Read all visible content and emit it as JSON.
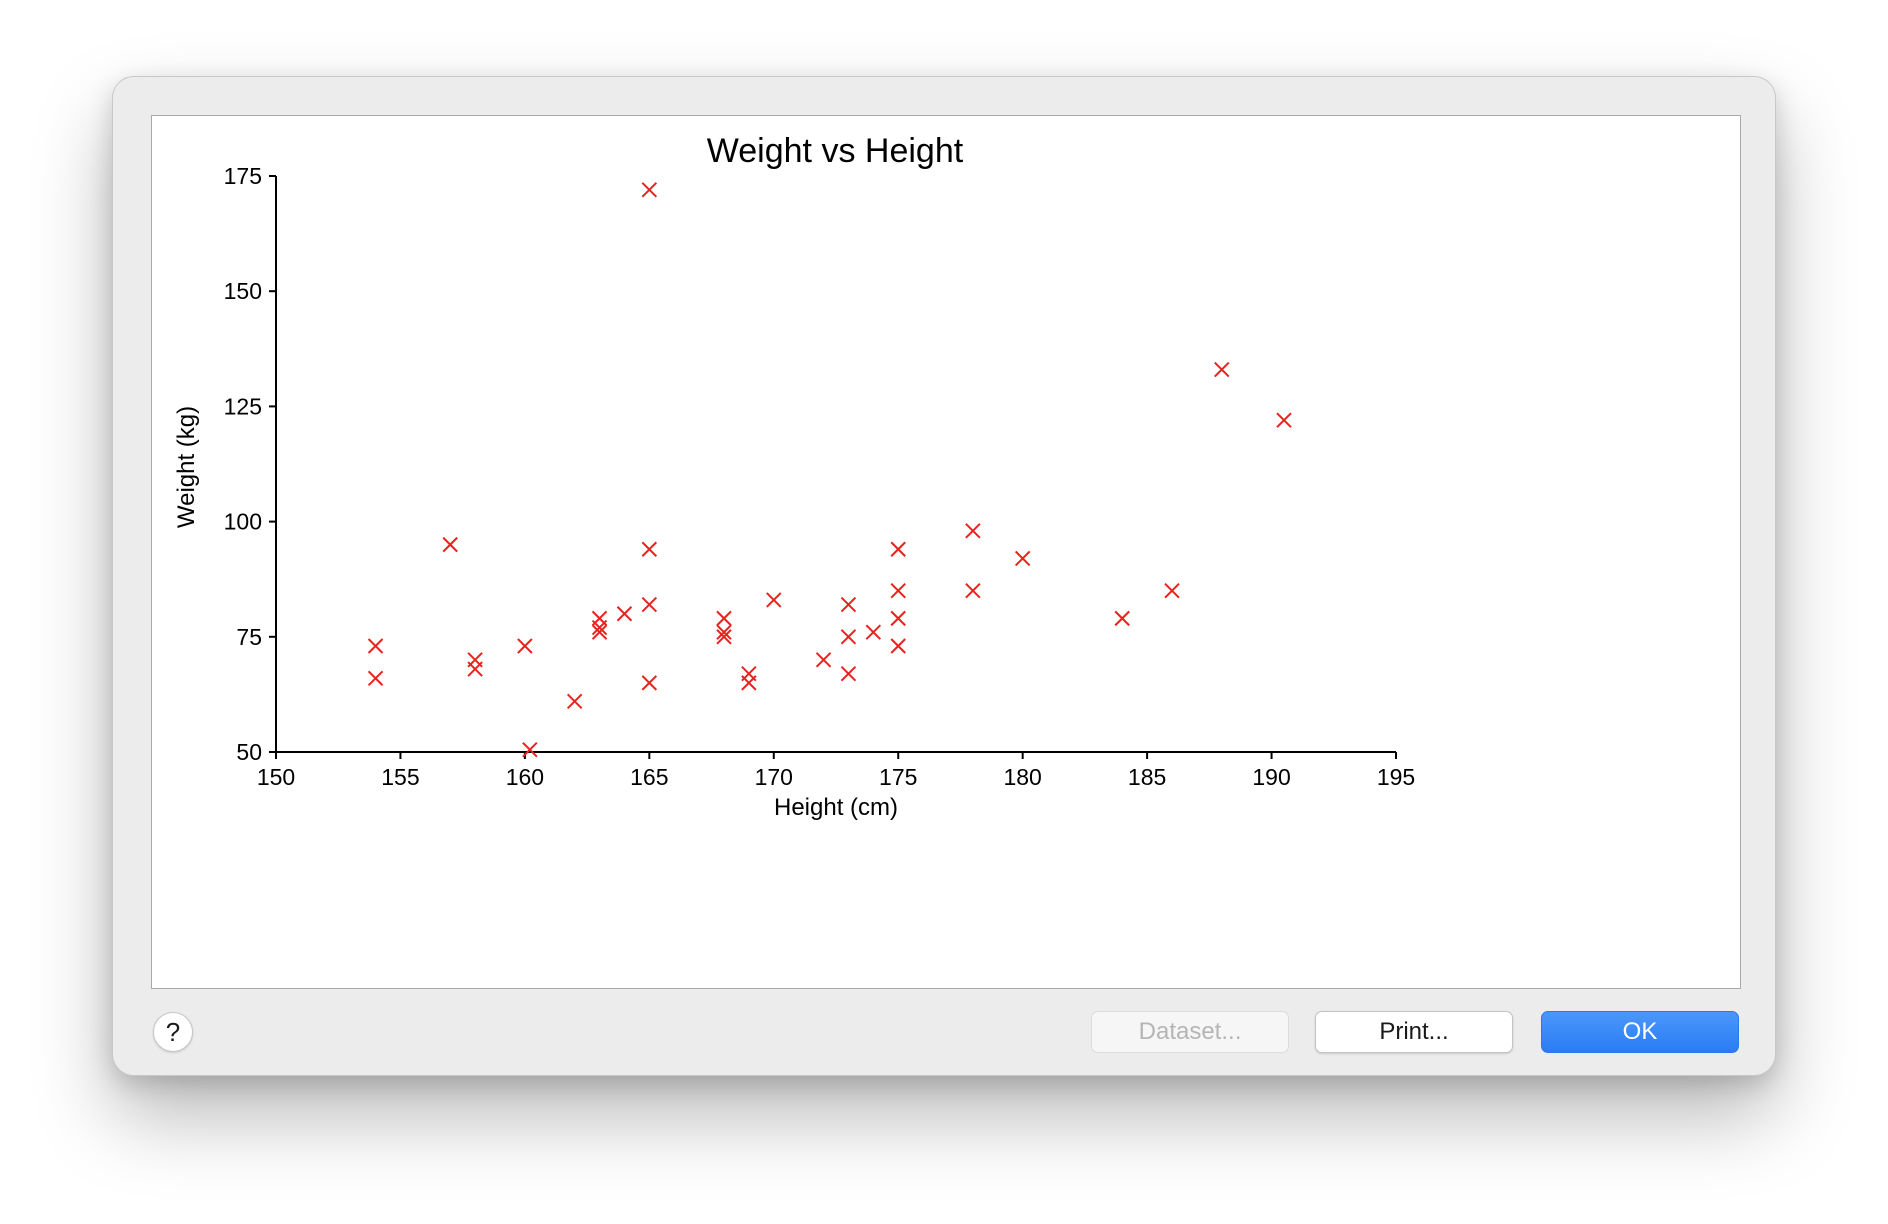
{
  "dialog": {
    "buttons": {
      "help_label": "?",
      "dataset_label": "Dataset...",
      "print_label": "Print...",
      "ok_label": "OK"
    },
    "accent_color": "#2f80f6"
  },
  "chart_data": {
    "type": "scatter",
    "title": "Weight vs Height",
    "xlabel": "Height (cm)",
    "ylabel": "Weight (kg)",
    "xlim": [
      150,
      195
    ],
    "ylim": [
      50,
      175
    ],
    "xticks": [
      150,
      155,
      160,
      165,
      170,
      175,
      180,
      185,
      190,
      195
    ],
    "yticks": [
      50,
      75,
      100,
      125,
      150,
      175
    ],
    "grid": false,
    "marker": "x",
    "marker_color": "#e8231d",
    "series": [
      {
        "points": [
          [
            154,
            73
          ],
          [
            154,
            66
          ],
          [
            157,
            95
          ],
          [
            158,
            70
          ],
          [
            158,
            68
          ],
          [
            160,
            73
          ],
          [
            160.2,
            50.5
          ],
          [
            162,
            61
          ],
          [
            163,
            79
          ],
          [
            163,
            77
          ],
          [
            163,
            76
          ],
          [
            164,
            80
          ],
          [
            165,
            172
          ],
          [
            165,
            94
          ],
          [
            165,
            82
          ],
          [
            165,
            65
          ],
          [
            168,
            79
          ],
          [
            168,
            76
          ],
          [
            168,
            75
          ],
          [
            169,
            67
          ],
          [
            169,
            65
          ],
          [
            170,
            83
          ],
          [
            172,
            70
          ],
          [
            173,
            82
          ],
          [
            173,
            75
          ],
          [
            173,
            67
          ],
          [
            174,
            76
          ],
          [
            175,
            94
          ],
          [
            175,
            85
          ],
          [
            175,
            79
          ],
          [
            175,
            73
          ],
          [
            178,
            98
          ],
          [
            178,
            85
          ],
          [
            180,
            92
          ],
          [
            184,
            79
          ],
          [
            186,
            85
          ],
          [
            188,
            133
          ],
          [
            190.5,
            122
          ]
        ]
      }
    ]
  }
}
